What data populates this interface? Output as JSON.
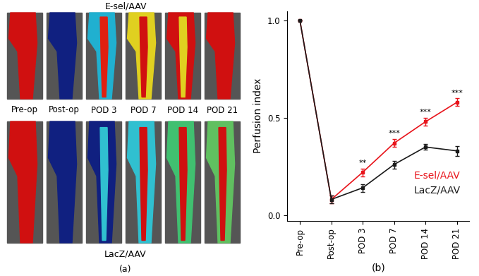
{
  "panel_a": {
    "top_label": "E-sel/AAV",
    "bottom_label": "LacZ/AAV",
    "timepoints": [
      "Pre-op",
      "Post-op",
      "POD 3",
      "POD 7",
      "POD 14",
      "POD 21"
    ],
    "caption": "(a)"
  },
  "chart_data": {
    "type": "line",
    "xlabel": "(b)",
    "ylabel": "Perfusion index",
    "categories": [
      "Pre-op",
      "Post-op",
      "POD 3",
      "POD 7",
      "POD 14",
      "POD 21"
    ],
    "series": [
      {
        "name": "E-sel/AAV",
        "color": "#e8141b",
        "marker": "square",
        "values": [
          1.0,
          0.08,
          0.22,
          0.37,
          0.48,
          0.58
        ],
        "errors": [
          0.0,
          0.02,
          0.02,
          0.02,
          0.02,
          0.02
        ]
      },
      {
        "name": "LacZ/AAV",
        "color": "#1a1a1a",
        "marker": "square",
        "values": [
          1.0,
          0.08,
          0.14,
          0.26,
          0.35,
          0.33
        ],
        "errors": [
          0.0,
          0.02,
          0.02,
          0.02,
          0.015,
          0.025
        ]
      }
    ],
    "significance": [
      null,
      null,
      "**",
      "***",
      "***",
      "***"
    ],
    "ylim": [
      -0.03,
      1.05
    ],
    "yticks": [
      {
        "value": 0.0,
        "label": "0.0"
      },
      {
        "value": 0.5,
        "label": "0.5"
      },
      {
        "value": 1.0,
        "label": "1.0"
      }
    ],
    "legend": "lower right"
  }
}
